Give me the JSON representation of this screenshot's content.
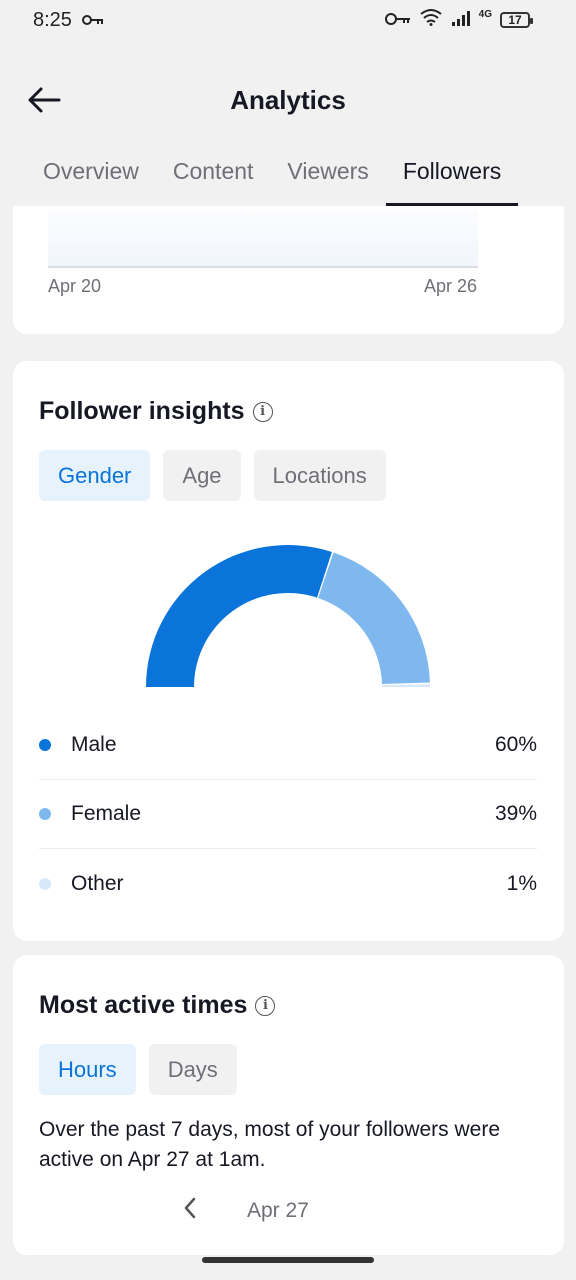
{
  "status": {
    "time": "8:25",
    "network": "4G",
    "battery": "17"
  },
  "header": {
    "title": "Analytics"
  },
  "tabs": [
    {
      "label": "Overview",
      "active": false
    },
    {
      "label": "Content",
      "active": false
    },
    {
      "label": "Viewers",
      "active": false
    },
    {
      "label": "Followers",
      "active": true
    }
  ],
  "top_chart": {
    "start_label": "Apr 20",
    "end_label": "Apr 26"
  },
  "insights": {
    "title": "Follower insights",
    "chips": [
      {
        "label": "Gender",
        "active": true
      },
      {
        "label": "Age",
        "active": false
      },
      {
        "label": "Locations",
        "active": false
      }
    ],
    "chart_data": {
      "type": "pie",
      "style": "half-donut",
      "categories": [
        "Male",
        "Female",
        "Other"
      ],
      "values": [
        60,
        39,
        1
      ],
      "colors": [
        "#0a74da",
        "#7fb8ef",
        "#d6e8fa"
      ]
    },
    "legend": [
      {
        "label": "Male",
        "value": "60%",
        "color": "#0a74da"
      },
      {
        "label": "Female",
        "value": "39%",
        "color": "#7fb8ef"
      },
      {
        "label": "Other",
        "value": "1%",
        "color": "#d6e8fa"
      }
    ]
  },
  "active_times": {
    "title": "Most active times",
    "chips": [
      {
        "label": "Hours",
        "active": true
      },
      {
        "label": "Days",
        "active": false
      }
    ],
    "description": "Over the past 7 days, most of your followers were active on Apr 27 at 1am.",
    "date": "Apr 27"
  },
  "colors": {
    "accent": "#0a74da",
    "background": "#f1f1f2"
  }
}
